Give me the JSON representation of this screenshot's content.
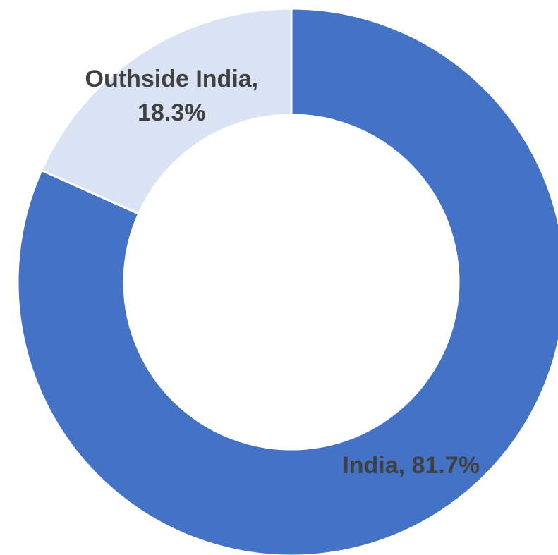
{
  "chart_data": {
    "type": "donut",
    "categories": [
      "India",
      "Outhside India"
    ],
    "values": [
      81.7,
      18.3
    ],
    "value_labels": [
      "India, 81.7%",
      "Outhside India, 18.3%"
    ],
    "colors": [
      "#4472c4",
      "#dae3f3"
    ]
  }
}
